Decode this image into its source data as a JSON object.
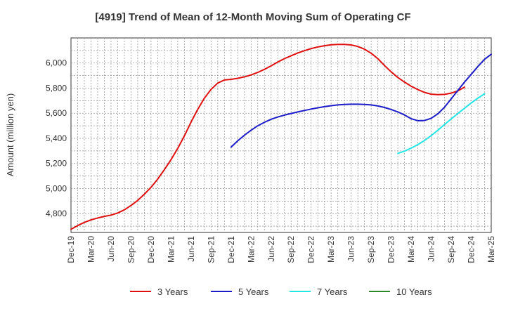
{
  "chart_data": {
    "type": "line",
    "title": "[4919]  Trend of Mean of 12-Month Moving Sum of Operating CF",
    "xlabel": "",
    "ylabel": "Amount (million yen)",
    "ylim": [
      4650,
      6200
    ],
    "yticks": [
      4800,
      5000,
      5200,
      5400,
      5600,
      5800,
      6000
    ],
    "ytick_labels": [
      "4,800",
      "5,000",
      "5,200",
      "5,400",
      "5,600",
      "5,800",
      "6,000"
    ],
    "x_labels": [
      "Dec-19",
      "Mar-20",
      "Jun-20",
      "Sep-20",
      "Dec-20",
      "Mar-21",
      "Jun-21",
      "Sep-21",
      "Dec-21",
      "Mar-22",
      "Jun-22",
      "Sep-22",
      "Dec-22",
      "Mar-23",
      "Jun-23",
      "Sep-23",
      "Dec-23",
      "Mar-24",
      "Jun-24",
      "Sep-24",
      "Dec-24",
      "Mar-25"
    ],
    "grid": true,
    "legend_position": "bottom",
    "series": [
      {
        "name": "3 Years",
        "color": "#e01010",
        "start_index": 0,
        "values": [
          4675,
          4705,
          4730,
          4750,
          4765,
          4778,
          4788,
          4805,
          4830,
          4865,
          4905,
          4955,
          5010,
          5075,
          5150,
          5230,
          5320,
          5420,
          5530,
          5630,
          5720,
          5790,
          5840,
          5865,
          5870,
          5878,
          5890,
          5905,
          5925,
          5950,
          5978,
          6008,
          6035,
          6058,
          6080,
          6098,
          6115,
          6128,
          6138,
          6145,
          6148,
          6148,
          6144,
          6132,
          6110,
          6078,
          6035,
          5980,
          5930,
          5885,
          5848,
          5815,
          5788,
          5766,
          5752,
          5748,
          5750,
          5760,
          5778,
          5808
        ]
      },
      {
        "name": "5 Years",
        "color": "#1c1cc8",
        "start_index": 24,
        "values": [
          5330,
          5380,
          5425,
          5465,
          5500,
          5528,
          5552,
          5570,
          5585,
          5598,
          5610,
          5622,
          5633,
          5643,
          5652,
          5660,
          5666,
          5670,
          5672,
          5672,
          5670,
          5666,
          5658,
          5646,
          5630,
          5610,
          5586,
          5556,
          5540,
          5542,
          5560,
          5595,
          5648,
          5715,
          5782,
          5848,
          5910,
          5972,
          6030,
          6070
        ]
      },
      {
        "name": "7 Years",
        "color": "#22e6e6",
        "start_index": 49,
        "values": [
          5280,
          5298,
          5322,
          5350,
          5383,
          5422,
          5465,
          5510,
          5555,
          5598,
          5640,
          5682,
          5720,
          5755
        ]
      },
      {
        "name": "10 Years",
        "color": "#2a8a2a",
        "start_index": 0,
        "values": []
      }
    ]
  }
}
